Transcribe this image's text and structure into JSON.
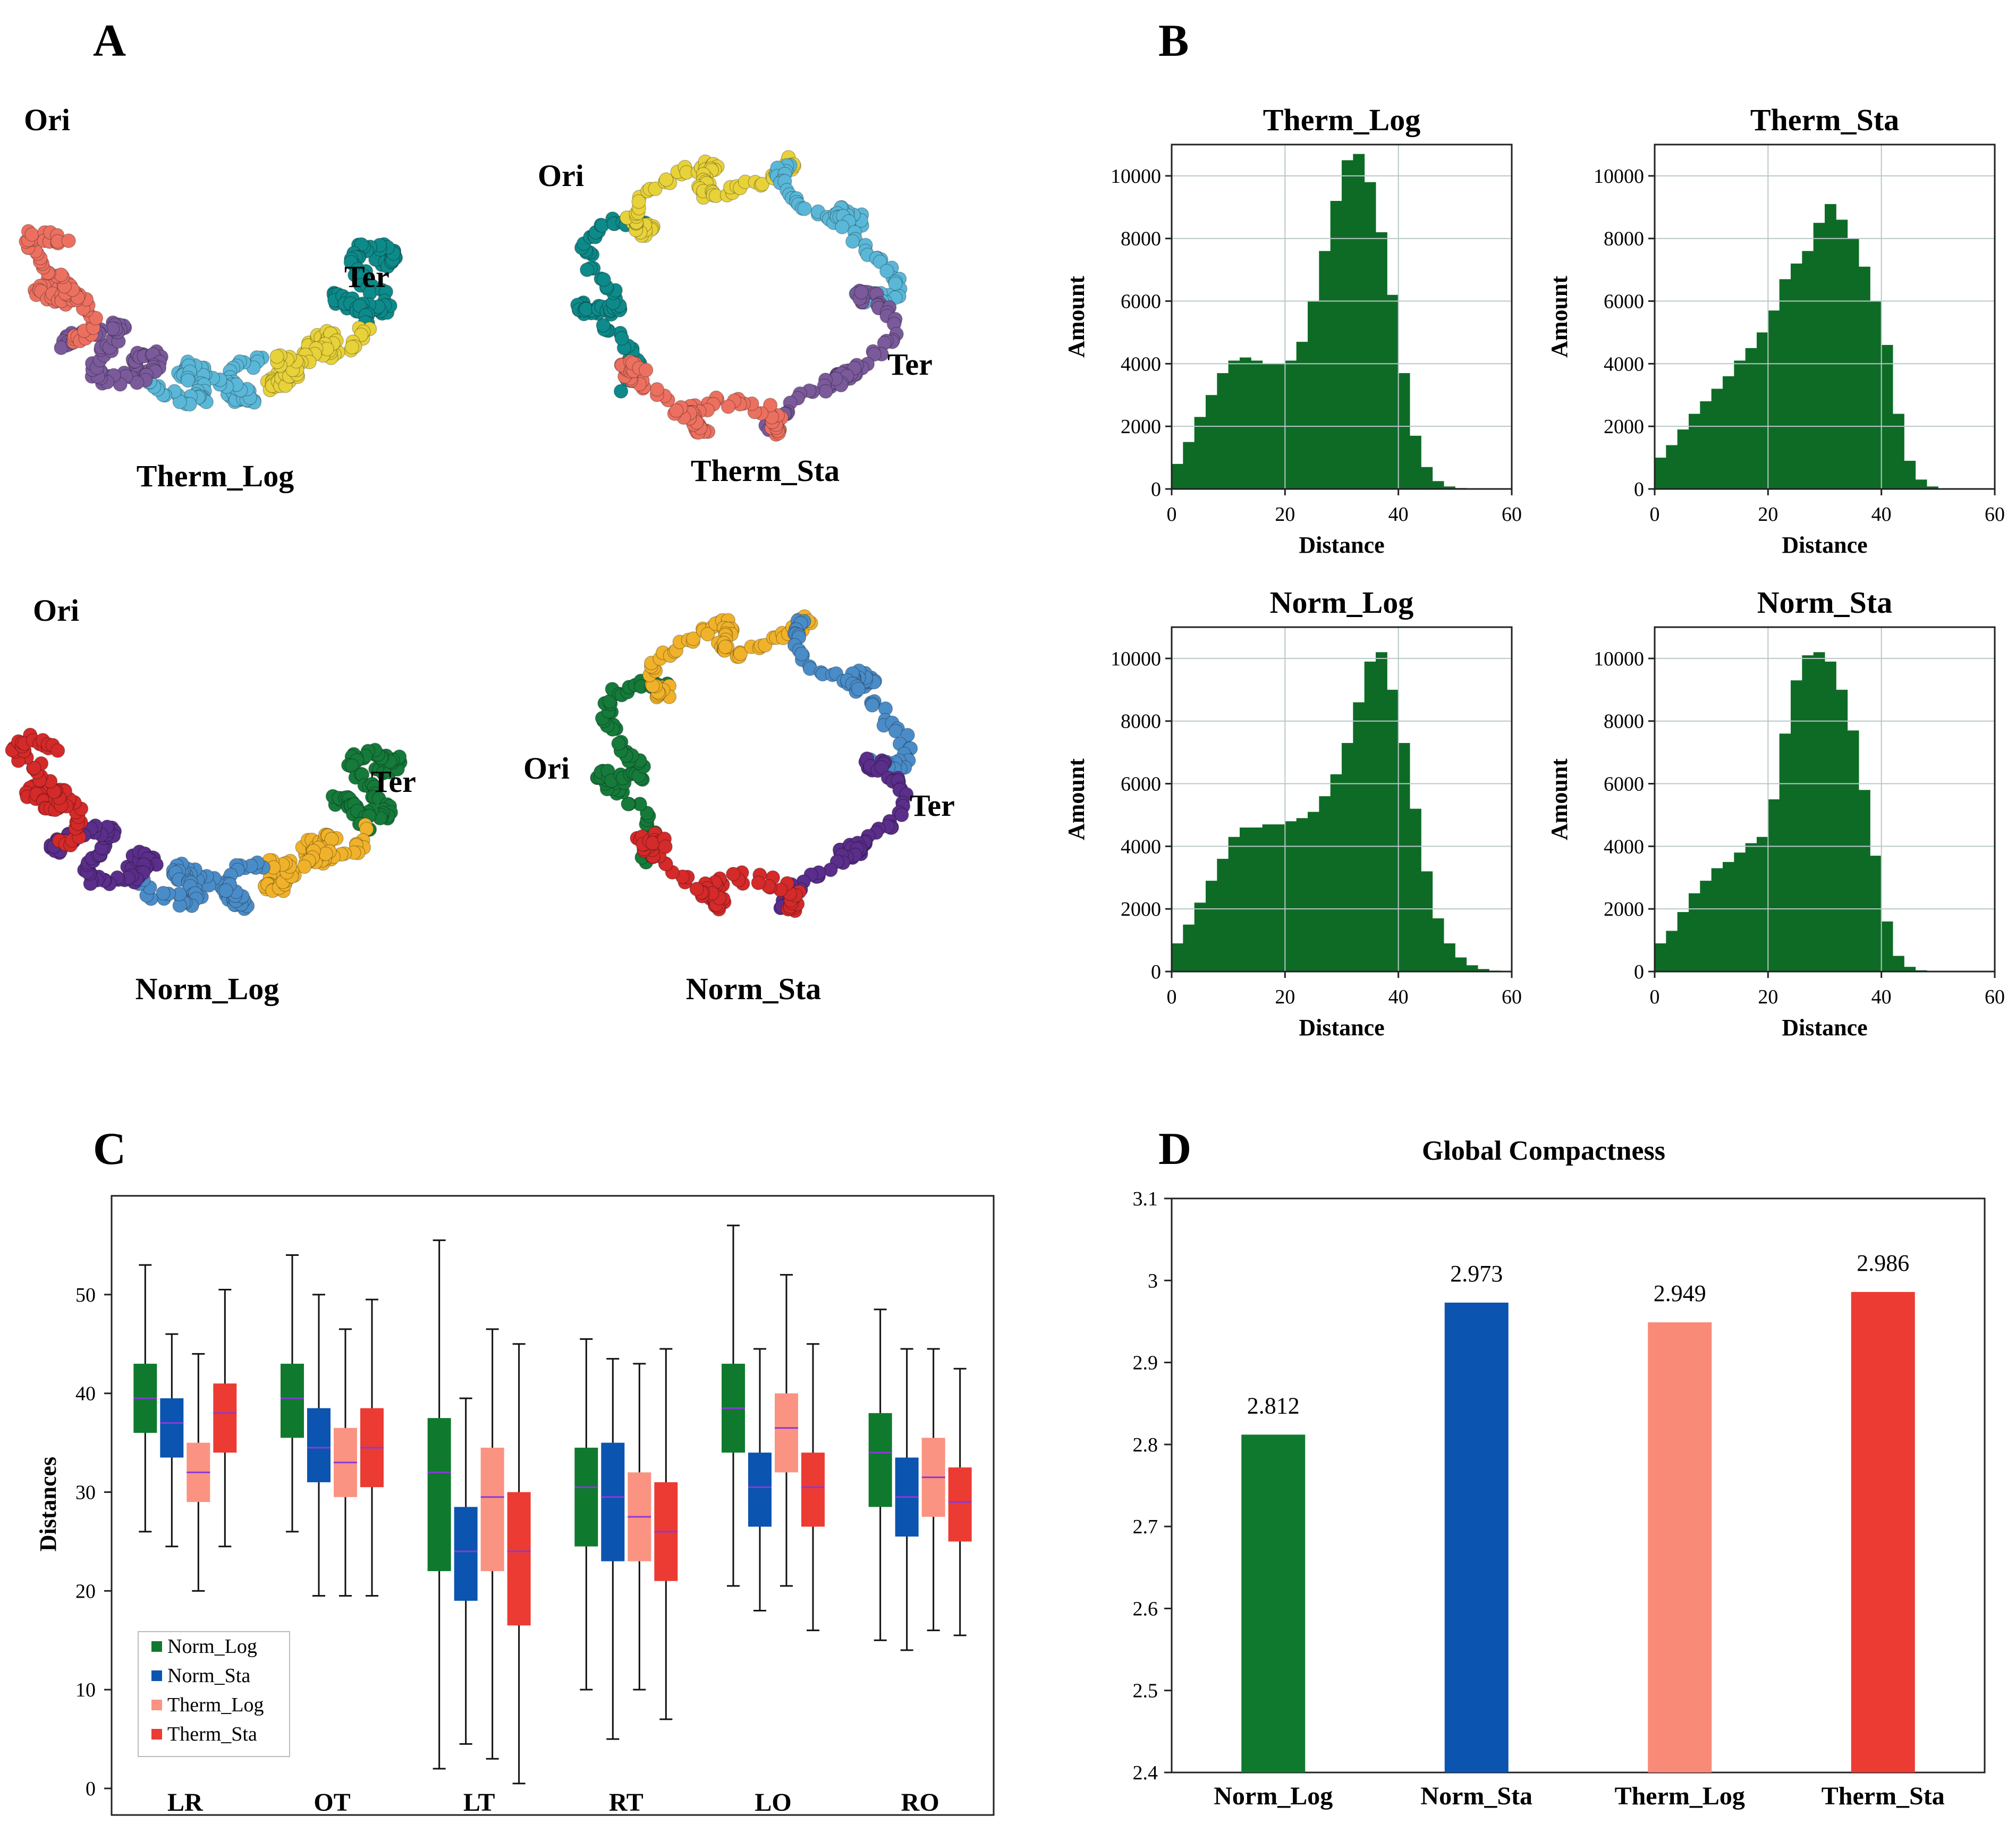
{
  "panel_letters": {
    "a": "A",
    "b": "B",
    "c": "C",
    "d": "D"
  },
  "structures": [
    {
      "title": "Therm_Log",
      "ori": "Ori",
      "ter": "Ter",
      "colors": [
        "#0e8a8a",
        "#e8d23a",
        "#5ab7d8",
        "#7a5a9a",
        "#ec7060"
      ]
    },
    {
      "title": "Therm_Sta",
      "ori": "Ori",
      "ter": "Ter",
      "colors": [
        "#0e8a8a",
        "#e8d23a",
        "#5ab7d8",
        "#7a5a9a",
        "#ec7060"
      ]
    },
    {
      "title": "Norm_Log",
      "ori": "Ori",
      "ter": "Ter",
      "colors": [
        "#157a3a",
        "#f0b22a",
        "#4a8cc8",
        "#5a2e8a",
        "#d42a2a"
      ]
    },
    {
      "title": "Norm_Sta",
      "ori": "Ori",
      "ter": "Ter",
      "colors": [
        "#157a3a",
        "#f0b22a",
        "#4a8cc8",
        "#5a2e8a",
        "#d42a2a"
      ]
    }
  ],
  "chart_data": [
    {
      "type": "histogram",
      "title": "Therm_Log",
      "xlabel": "Distance",
      "ylabel": "Amount",
      "xlim": [
        0,
        60
      ],
      "ylim": [
        0,
        11000
      ],
      "xticks": [
        "0",
        "20",
        "40",
        "60"
      ],
      "yticks": [
        "0",
        "2000",
        "4000",
        "6000",
        "8000",
        "10000"
      ],
      "grid": true,
      "color": "#0e6b26",
      "x": [
        0,
        2,
        4,
        6,
        8,
        10,
        12,
        14,
        16,
        18,
        20,
        22,
        24,
        26,
        28,
        30,
        32,
        34,
        36,
        38,
        40,
        42,
        44,
        46,
        48,
        50,
        52,
        54,
        56,
        58,
        60
      ],
      "values": [
        800,
        1500,
        2300,
        3000,
        3700,
        4100,
        4200,
        4100,
        4000,
        4000,
        4100,
        4700,
        6000,
        7600,
        9200,
        10500,
        10700,
        9800,
        8200,
        6200,
        3700,
        1700,
        700,
        250,
        80,
        30,
        10,
        0,
        0,
        0,
        0
      ]
    },
    {
      "type": "histogram",
      "title": "Therm_Sta",
      "xlabel": "Distance",
      "ylabel": "Amount",
      "xlim": [
        0,
        60
      ],
      "ylim": [
        0,
        11000
      ],
      "xticks": [
        "0",
        "20",
        "40",
        "60"
      ],
      "yticks": [
        "0",
        "2000",
        "4000",
        "6000",
        "8000",
        "10000"
      ],
      "grid": true,
      "color": "#0e6b26",
      "x": [
        0,
        2,
        4,
        6,
        8,
        10,
        12,
        14,
        16,
        18,
        20,
        22,
        24,
        26,
        28,
        30,
        32,
        34,
        36,
        38,
        40,
        42,
        44,
        46,
        48,
        50,
        52,
        54,
        56,
        58,
        60
      ],
      "values": [
        1000,
        1400,
        1900,
        2400,
        2800,
        3200,
        3600,
        4100,
        4500,
        5000,
        5700,
        6700,
        7200,
        7600,
        8500,
        9100,
        8600,
        8000,
        7100,
        6000,
        4600,
        2400,
        900,
        300,
        80,
        20,
        5,
        0,
        0,
        0,
        0
      ]
    },
    {
      "type": "histogram",
      "title": "Norm_Log",
      "xlabel": "Distance",
      "ylabel": "Amount",
      "xlim": [
        0,
        60
      ],
      "ylim": [
        0,
        11000
      ],
      "xticks": [
        "0",
        "20",
        "40",
        "60"
      ],
      "yticks": [
        "0",
        "2000",
        "4000",
        "6000",
        "8000",
        "10000"
      ],
      "grid": true,
      "color": "#0e6b26",
      "x": [
        0,
        2,
        4,
        6,
        8,
        10,
        12,
        14,
        16,
        18,
        20,
        22,
        24,
        26,
        28,
        30,
        32,
        34,
        36,
        38,
        40,
        42,
        44,
        46,
        48,
        50,
        52,
        54,
        56,
        58,
        60
      ],
      "values": [
        900,
        1500,
        2200,
        2900,
        3600,
        4300,
        4600,
        4600,
        4700,
        4700,
        4800,
        4900,
        5100,
        5600,
        6300,
        7300,
        8600,
        9900,
        10200,
        9000,
        7300,
        5200,
        3200,
        1700,
        900,
        450,
        200,
        80,
        30,
        10,
        0
      ]
    },
    {
      "type": "histogram",
      "title": "Norm_Sta",
      "xlabel": "Distance",
      "ylabel": "Amount",
      "xlim": [
        0,
        60
      ],
      "ylim": [
        0,
        11000
      ],
      "xticks": [
        "0",
        "20",
        "40",
        "60"
      ],
      "yticks": [
        "0",
        "2000",
        "4000",
        "6000",
        "8000",
        "10000"
      ],
      "grid": true,
      "color": "#0e6b26",
      "x": [
        0,
        2,
        4,
        6,
        8,
        10,
        12,
        14,
        16,
        18,
        20,
        22,
        24,
        26,
        28,
        30,
        32,
        34,
        36,
        38,
        40,
        42,
        44,
        46,
        48,
        50,
        52,
        54,
        56,
        58,
        60
      ],
      "values": [
        900,
        1300,
        1900,
        2500,
        2900,
        3300,
        3500,
        3800,
        4100,
        4300,
        5500,
        7600,
        9300,
        10100,
        10200,
        9900,
        9000,
        7700,
        5800,
        3700,
        1600,
        500,
        150,
        40,
        10,
        0,
        0,
        0,
        0,
        0,
        0
      ]
    },
    {
      "type": "box",
      "ylabel": "Distances",
      "ylim": [
        0,
        60
      ],
      "yticks": [
        "0",
        "10",
        "20",
        "30",
        "40",
        "50"
      ],
      "categories": [
        "LR",
        "OT",
        "LT",
        "RT",
        "LO",
        "RO"
      ],
      "legend_position": "bottom-left",
      "series": [
        {
          "name": "Norm_Log",
          "color": "#0f7a2e",
          "boxes": [
            {
              "min": 26,
              "q1": 36,
              "median": 39.5,
              "q3": 43,
              "max": 53
            },
            {
              "min": 26,
              "q1": 35.5,
              "median": 39.5,
              "q3": 43,
              "max": 54
            },
            {
              "min": 2,
              "q1": 22,
              "median": 32,
              "q3": 37.5,
              "max": 55.5
            },
            {
              "min": 10,
              "q1": 24.5,
              "median": 30.5,
              "q3": 34.5,
              "max": 45.5
            },
            {
              "min": 20.5,
              "q1": 34,
              "median": 38.5,
              "q3": 43,
              "max": 57
            },
            {
              "min": 15,
              "q1": 28.5,
              "median": 34,
              "q3": 38,
              "max": 48.5
            }
          ]
        },
        {
          "name": "Norm_Sta",
          "color": "#0b54b0",
          "boxes": [
            {
              "min": 24.5,
              "q1": 33.5,
              "median": 37,
              "q3": 39.5,
              "max": 46
            },
            {
              "min": 19.5,
              "q1": 31,
              "median": 34.5,
              "q3": 38.5,
              "max": 50
            },
            {
              "min": 4.5,
              "q1": 19,
              "median": 24,
              "q3": 28.5,
              "max": 39.5
            },
            {
              "min": 5,
              "q1": 23,
              "median": 29.5,
              "q3": 35,
              "max": 43.5
            },
            {
              "min": 18,
              "q1": 26.5,
              "median": 30.5,
              "q3": 34,
              "max": 44.5
            },
            {
              "min": 14,
              "q1": 25.5,
              "median": 29.5,
              "q3": 33.5,
              "max": 44.5
            }
          ]
        },
        {
          "name": "Therm_Log",
          "color": "#fa9382",
          "boxes": [
            {
              "min": 20,
              "q1": 29,
              "median": 32,
              "q3": 35,
              "max": 44
            },
            {
              "min": 19.5,
              "q1": 29.5,
              "median": 33,
              "q3": 36.5,
              "max": 46.5
            },
            {
              "min": 3,
              "q1": 22,
              "median": 29.5,
              "q3": 34.5,
              "max": 46.5
            },
            {
              "min": 10,
              "q1": 23,
              "median": 27.5,
              "q3": 32,
              "max": 43
            },
            {
              "min": 20.5,
              "q1": 32,
              "median": 36.5,
              "q3": 40,
              "max": 52
            },
            {
              "min": 16,
              "q1": 27.5,
              "median": 31.5,
              "q3": 35.5,
              "max": 44.5
            }
          ]
        },
        {
          "name": "Therm_Sta",
          "color": "#ec3b33",
          "boxes": [
            {
              "min": 24.5,
              "q1": 34,
              "median": 38,
              "q3": 41,
              "max": 50.5
            },
            {
              "min": 19.5,
              "q1": 30.5,
              "median": 34.5,
              "q3": 38.5,
              "max": 49.5
            },
            {
              "min": 0.5,
              "q1": 16.5,
              "median": 24,
              "q3": 30,
              "max": 45
            },
            {
              "min": 7,
              "q1": 21,
              "median": 26,
              "q3": 31,
              "max": 44.5
            },
            {
              "min": 16,
              "q1": 26.5,
              "median": 30.5,
              "q3": 34,
              "max": 45
            },
            {
              "min": 15.5,
              "q1": 25,
              "median": 29,
              "q3": 32.5,
              "max": 42.5
            }
          ]
        }
      ]
    },
    {
      "type": "bar",
      "title": "Global Compactness",
      "categories": [
        "Norm_Log",
        "Norm_Sta",
        "Therm_Log",
        "Therm_Sta"
      ],
      "values": [
        2.812,
        2.973,
        2.949,
        2.986
      ],
      "value_labels": [
        "2.812",
        "2.973",
        "2.949",
        "2.986"
      ],
      "colors": [
        "#0f7a2e",
        "#0b54b0",
        "#fa8a78",
        "#ec3b33"
      ],
      "ylim": [
        2.4,
        3.1
      ],
      "yticks": [
        "2.4",
        "2.5",
        "2.6",
        "2.7",
        "2.8",
        "2.9",
        "3",
        "3.1"
      ]
    }
  ]
}
